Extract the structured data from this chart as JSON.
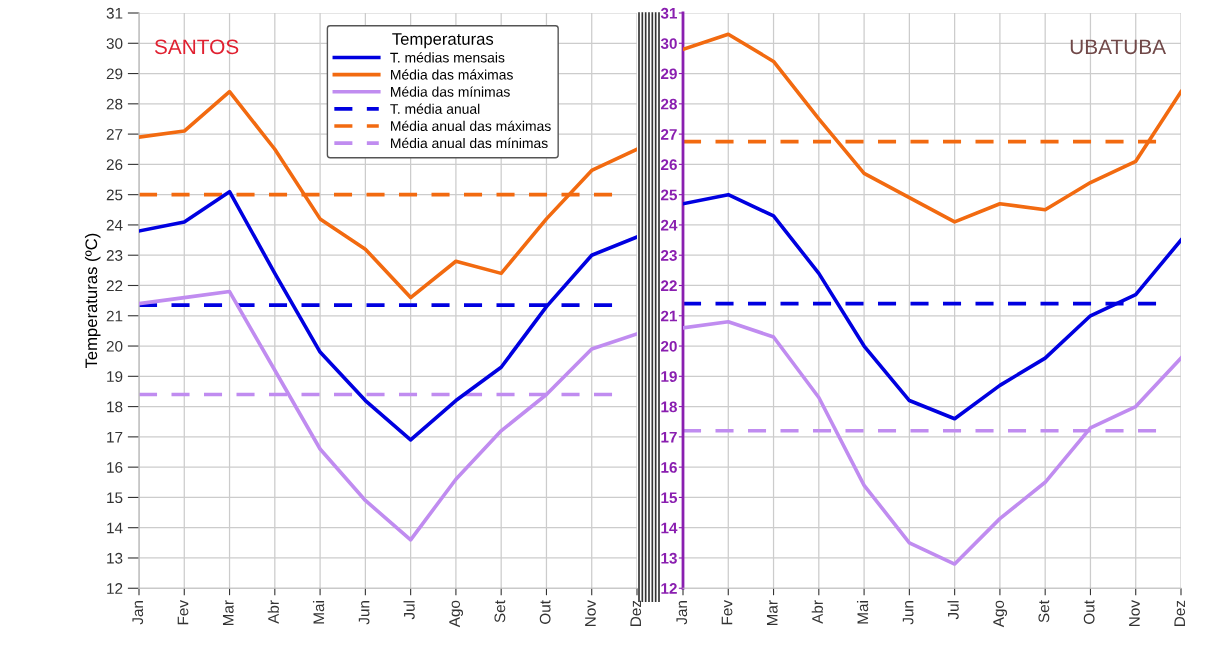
{
  "chart_data": [
    {
      "type": "line",
      "title": "SANTOS",
      "ylabel": "Temperaturas (ºC)",
      "legend_title": "Temperaturas",
      "legend": "top",
      "grid": true,
      "line_style": "solid",
      "marker": "none",
      "categories": [
        "Jan",
        "Fev",
        "Mar",
        "Abr",
        "Mai",
        "Jun",
        "Jul",
        "Ago",
        "Set",
        "Out",
        "Nov",
        "Dez"
      ],
      "ylim": [
        12,
        31
      ],
      "yticks": [
        12,
        13,
        14,
        15,
        16,
        17,
        18,
        19,
        20,
        21,
        22,
        23,
        24,
        25,
        26,
        27,
        28,
        29,
        30,
        31
      ],
      "series": [
        {
          "name": "T. médias mensais",
          "color": "#0000e0",
          "values": [
            23.8,
            24.1,
            25.1,
            22.4,
            19.8,
            18.2,
            16.9,
            18.2,
            19.3,
            21.3,
            23.0,
            23.6
          ]
        },
        {
          "name": "Média das máximas",
          "color": "#f26a10",
          "values": [
            26.9,
            27.1,
            28.4,
            26.5,
            24.2,
            23.2,
            21.6,
            22.8,
            22.4,
            24.2,
            25.8,
            26.5
          ]
        },
        {
          "name": "Média das mínimas",
          "color": "#c08cf0",
          "values": [
            21.4,
            21.6,
            21.8,
            19.2,
            16.6,
            14.9,
            13.6,
            15.6,
            17.2,
            18.4,
            19.9,
            20.4
          ]
        }
      ],
      "ref_lines": [
        {
          "axis": "y",
          "value": 21.35,
          "label": "T. média anual",
          "color": "#0000e0",
          "line_style": "dashed"
        },
        {
          "axis": "y",
          "value": 25.0,
          "label": "Média anual das máximas",
          "color": "#f26a10",
          "line_style": "dashed"
        },
        {
          "axis": "y",
          "value": 18.4,
          "label": "Média anual das mínimas",
          "color": "#c08cf0",
          "line_style": "dashed"
        }
      ]
    },
    {
      "type": "line",
      "title": "UBATUBA",
      "grid": true,
      "line_style": "solid",
      "marker": "none",
      "categories": [
        "Jan",
        "Fev",
        "Mar",
        "Abr",
        "Mai",
        "Jun",
        "Jul",
        "Ago",
        "Set",
        "Out",
        "Nov",
        "Dez"
      ],
      "ylim": [
        12,
        31
      ],
      "yticks": [
        12,
        13,
        14,
        15,
        16,
        17,
        18,
        19,
        20,
        21,
        22,
        23,
        24,
        25,
        26,
        27,
        28,
        29,
        30,
        31
      ],
      "series": [
        {
          "color": "#f26a10",
          "values": [
            29.8,
            30.3,
            29.4,
            27.5,
            25.7,
            24.9,
            24.1,
            24.7,
            24.5,
            25.4,
            26.1,
            28.4
          ]
        },
        {
          "color": "#0000e0",
          "values": [
            24.7,
            25.0,
            24.3,
            22.4,
            20.0,
            18.2,
            17.6,
            18.7,
            19.6,
            21.0,
            21.7,
            23.5
          ]
        },
        {
          "color": "#c08cf0",
          "values": [
            20.6,
            20.8,
            20.3,
            18.3,
            15.4,
            13.5,
            12.8,
            14.3,
            15.5,
            17.3,
            18.0,
            19.6
          ]
        }
      ],
      "ref_lines": [
        {
          "axis": "y",
          "value": 26.75,
          "color": "#f26a10",
          "line_style": "dashed"
        },
        {
          "axis": "y",
          "value": 21.4,
          "color": "#0000e0",
          "line_style": "dashed"
        },
        {
          "axis": "y",
          "value": 17.2,
          "color": "#c08cf0",
          "line_style": "dashed"
        }
      ]
    }
  ]
}
